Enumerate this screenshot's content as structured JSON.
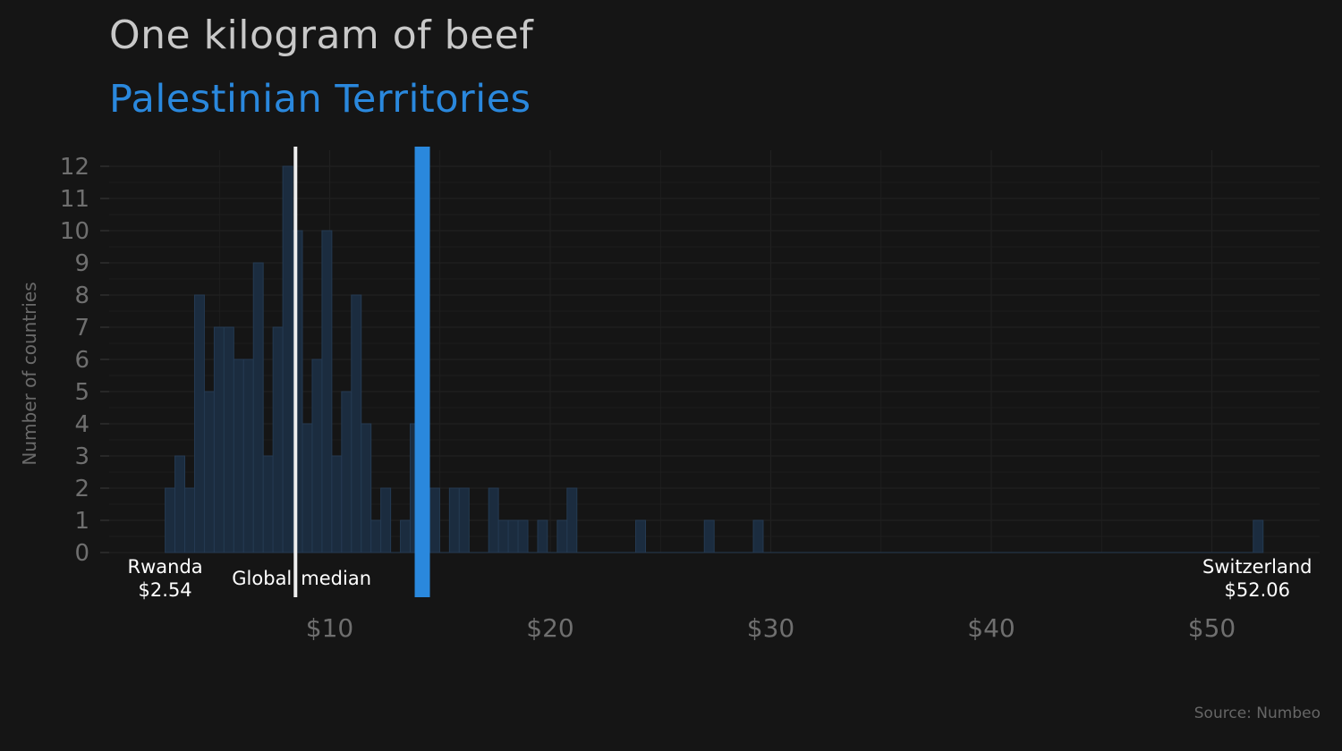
{
  "chart_data": {
    "type": "bar",
    "title": "One kilogram of beef",
    "subtitle": "Palestinian Territories",
    "ylabel": "Number of countries",
    "source": "Source: Numbeo",
    "xlim": [
      2.54,
      52.06
    ],
    "ylim": [
      0,
      12
    ],
    "y_ticks": [
      0,
      1,
      2,
      3,
      4,
      5,
      6,
      7,
      8,
      9,
      10,
      11,
      12
    ],
    "x_ticks": [
      10,
      20,
      30,
      40,
      50
    ],
    "x_tick_labels": [
      "$10",
      "$20",
      "$30",
      "$40",
      "$50"
    ],
    "bins": {
      "start": 2.54,
      "width": 0.4445,
      "counts": [
        2,
        3,
        2,
        8,
        5,
        7,
        7,
        6,
        6,
        9,
        3,
        7,
        12,
        10,
        4,
        6,
        10,
        3,
        5,
        8,
        4,
        1,
        2,
        0,
        1,
        4,
        1,
        2,
        0,
        2,
        2,
        0,
        0,
        2,
        1,
        1,
        1,
        0,
        1,
        0,
        1,
        2,
        0,
        0,
        0,
        0,
        0,
        0,
        1,
        0,
        0,
        0,
        0,
        0,
        0,
        1,
        0,
        0,
        0,
        0,
        1,
        0,
        0,
        0,
        0,
        0,
        0,
        0,
        0,
        0,
        0,
        0,
        0,
        0,
        0,
        0,
        0,
        0,
        0,
        0,
        0,
        0,
        0,
        0,
        0,
        0,
        0,
        0,
        0,
        0,
        0,
        0,
        0,
        0,
        0,
        0,
        0,
        0,
        0,
        0,
        0,
        0,
        0,
        0,
        0,
        0,
        0,
        0,
        0,
        0,
        0,
        1
      ]
    },
    "median": 8.45,
    "highlight_value": 14.2,
    "grid": true,
    "colors": {
      "background": "#151515",
      "bar_fill": "#1b2c3f",
      "bar_stroke": "#243a52",
      "highlight": "#2a88dd",
      "median_line": "#eeeeee",
      "grid": "#202020",
      "title": "#c8c8c8",
      "tick": "#6f6f6f"
    },
    "annotations": {
      "min_country": "Rwanda",
      "min_value_label": "$2.54",
      "median_text_left": "Global",
      "median_text_right": "median",
      "max_country": "Switzerland",
      "max_value_label": "$52.06"
    }
  }
}
